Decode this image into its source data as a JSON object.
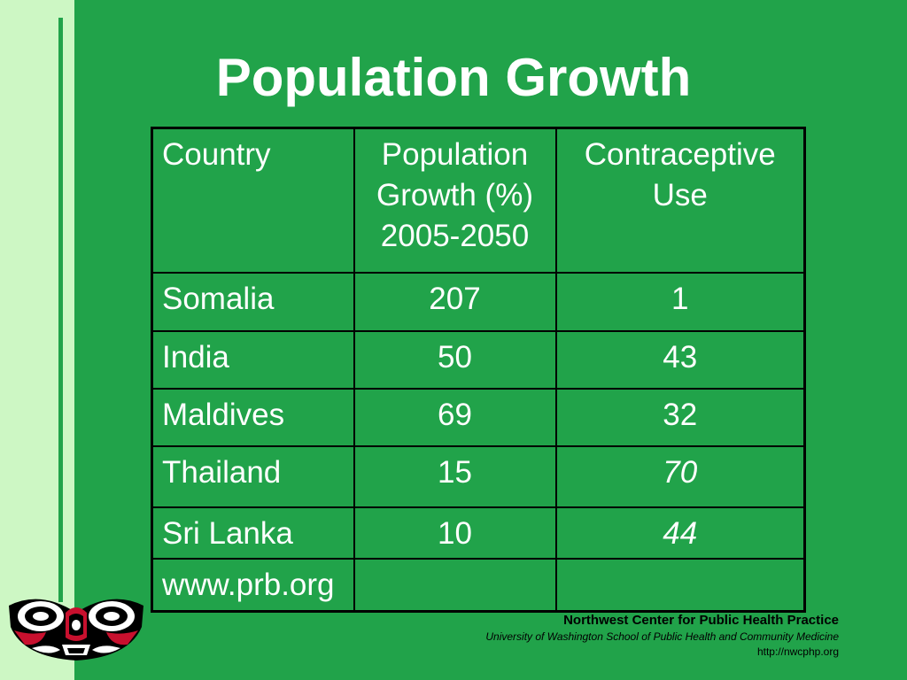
{
  "slide": {
    "title": "Population Growth"
  },
  "table": {
    "header": {
      "country": "Country",
      "growth_line1": "Population",
      "growth_line2": "Growth (%)",
      "growth_line3": "2005-2050",
      "contraceptive_line1": "Contraceptive",
      "contraceptive_line2": "Use"
    },
    "rows": [
      {
        "country": "Somalia",
        "growth": "207",
        "contraceptive": "1"
      },
      {
        "country": "India",
        "growth": "50",
        "contraceptive": "43"
      },
      {
        "country": "Maldives",
        "growth": "69",
        "contraceptive": "32"
      },
      {
        "country": "Thailand",
        "growth": "15",
        "contraceptive": "70"
      },
      {
        "country": "Sri Lanka",
        "growth": "10",
        "contraceptive": "44"
      }
    ],
    "source": "www.prb.org"
  },
  "footer": {
    "org": "Northwest Center for Public Health Practice",
    "school": "University of Washington School of Public Health and Community Medicine",
    "url": "http://nwcphp.org"
  },
  "logo": {
    "icon": "northwest-coast-art-logo-icon",
    "colors": {
      "red": "#c8102e",
      "black": "#000000",
      "white": "#ffffff"
    }
  },
  "colors": {
    "background": "#21a34a",
    "left_strip": "#cdf7c4",
    "text": "#ffffff"
  }
}
